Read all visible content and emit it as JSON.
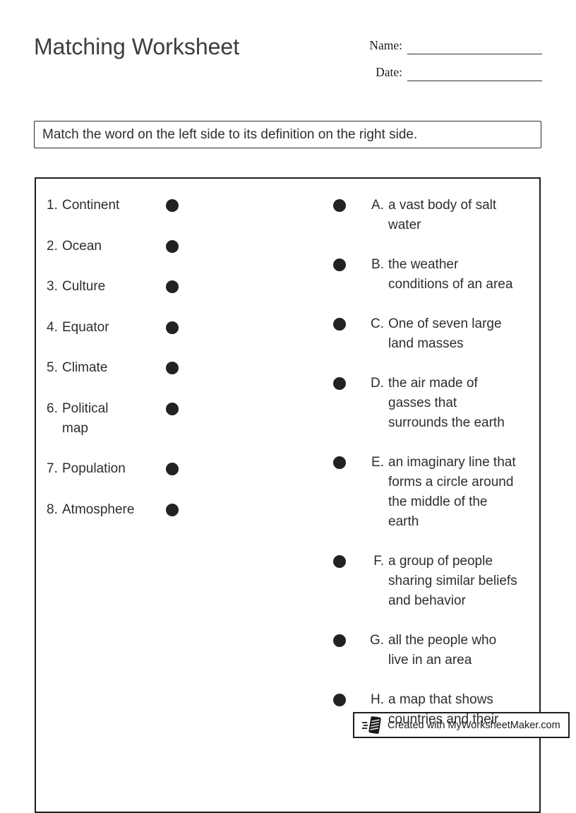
{
  "header": {
    "title": "Matching Worksheet",
    "name_label": "Name:",
    "date_label": "Date:"
  },
  "instruction": {
    "text": "Match the word on the left side to its definition on the right side."
  },
  "matching": {
    "left_items": [
      {
        "number": "1.",
        "lines": [
          "Continent"
        ]
      },
      {
        "number": "2.",
        "lines": [
          "Ocean"
        ]
      },
      {
        "number": "3.",
        "lines": [
          "Culture"
        ]
      },
      {
        "number": "4.",
        "lines": [
          "Equator"
        ]
      },
      {
        "number": "5.",
        "lines": [
          "Climate"
        ]
      },
      {
        "number": "6.",
        "lines": [
          "Political",
          "map"
        ]
      },
      {
        "number": "7.",
        "lines": [
          "Population"
        ]
      },
      {
        "number": "8.",
        "lines": [
          "Atmosphere"
        ]
      }
    ],
    "right_items": [
      {
        "letter": "A.",
        "lines": [
          "a vast body of salt",
          "water"
        ]
      },
      {
        "letter": "B.",
        "lines": [
          "the weather",
          "conditions of an area"
        ]
      },
      {
        "letter": "C.",
        "lines": [
          "One of seven large",
          "land masses"
        ]
      },
      {
        "letter": "D.",
        "lines": [
          "the air made of",
          "gasses that",
          "surrounds the earth"
        ]
      },
      {
        "letter": "E.",
        "lines": [
          "an imaginary line that",
          "forms a circle around",
          "the middle of the",
          "earth"
        ]
      },
      {
        "letter": "F.",
        "lines": [
          "a group of people",
          "sharing similar beliefs",
          "and behavior"
        ]
      },
      {
        "letter": "G.",
        "lines": [
          "all the people who",
          "live in an area"
        ]
      },
      {
        "letter": "H.",
        "lines": [
          "a map that shows",
          "countries and their"
        ]
      }
    ],
    "dot_icon": "match-dot-icon"
  },
  "footer": {
    "credit": "Created with MyWorksheetMaker.com",
    "logo_icon": "flying-worksheet-icon"
  },
  "colors": {
    "text": "#2e2e2e",
    "title": "#3d3d3d",
    "dot": "#222222",
    "border": "#1f1f1f"
  }
}
